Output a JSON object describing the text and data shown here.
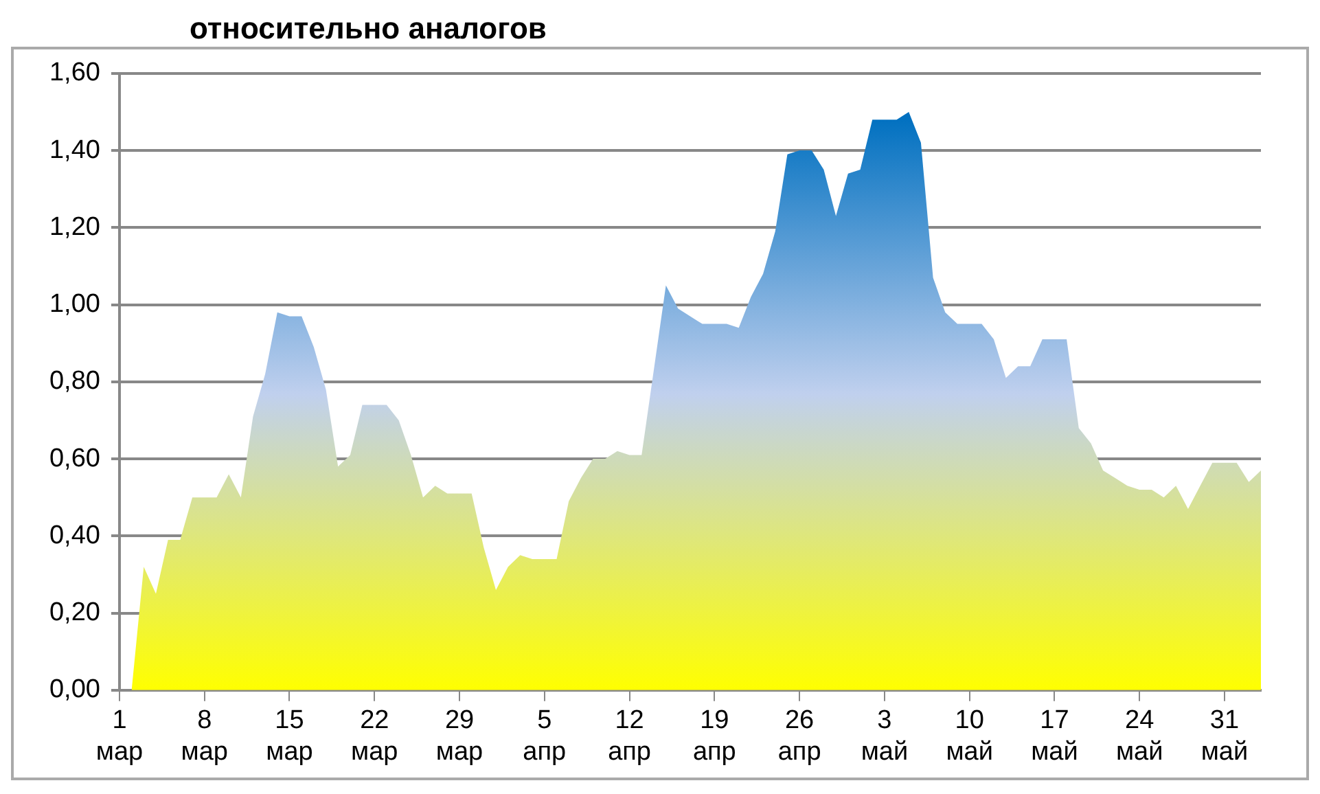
{
  "chart_data": {
    "type": "area",
    "title": "относительно аналогов",
    "categories": [
      "1 мар",
      null,
      null,
      null,
      null,
      null,
      null,
      "8 мар",
      null,
      null,
      null,
      null,
      null,
      null,
      "15 мар",
      null,
      null,
      null,
      null,
      null,
      null,
      "22 мар",
      null,
      null,
      null,
      null,
      null,
      null,
      "29 мар",
      null,
      null,
      null,
      null,
      null,
      null,
      "5 апр",
      null,
      null,
      null,
      null,
      null,
      null,
      "12 апр",
      null,
      null,
      null,
      null,
      null,
      null,
      "19 апр",
      null,
      null,
      null,
      null,
      null,
      null,
      "26 апр",
      null,
      null,
      null,
      null,
      null,
      null,
      "3 май",
      null,
      null,
      null,
      null,
      null,
      null,
      "10 май",
      null,
      null,
      null,
      null,
      null,
      null,
      "17 май",
      null,
      null,
      null,
      null,
      null,
      null,
      "24 май",
      null,
      null,
      null,
      null,
      null,
      null,
      "31 май",
      null,
      null,
      null
    ],
    "series": [
      {
        "color": "#0070c0",
        "values": [
          null,
          0,
          0.32,
          0.25,
          0.39,
          0.39,
          0.5,
          0.5,
          0.5,
          0.56,
          0.5,
          0.71,
          0.82,
          0.98,
          0.97,
          0.97,
          0.89,
          0.78,
          0.58,
          0.61,
          0.74,
          0.74,
          0.74,
          0.7,
          0.61,
          0.5,
          0.53,
          0.51,
          0.51,
          0.51,
          0.37,
          0.26,
          0.32,
          0.35,
          0.34,
          0.34,
          0.34,
          0.49,
          0.55,
          0.6,
          0.6,
          0.62,
          0.61,
          0.61,
          0.83,
          1.05,
          0.99,
          0.97,
          0.95,
          0.95,
          0.95,
          0.94,
          1.02,
          1.08,
          1.19,
          1.39,
          1.4,
          1.4,
          1.35,
          1.23,
          1.34,
          1.35,
          1.48,
          1.48,
          1.48,
          1.5,
          1.42,
          1.07,
          0.98,
          0.95,
          0.95,
          0.95,
          0.91,
          0.81,
          0.84,
          0.84,
          0.91,
          0.91,
          0.91,
          0.68,
          0.64,
          0.57,
          0.55,
          0.53,
          0.52,
          0.52,
          0.5,
          0.53,
          0.47,
          0.53,
          0.59,
          0.59,
          0.59,
          0.54,
          0.57
        ]
      }
    ],
    "ylim": [
      0,
      1.6
    ],
    "yticks": [
      {
        "value": 0,
        "label": "0,00"
      },
      {
        "value": 0.2,
        "label": "0,20"
      },
      {
        "value": 0.4,
        "label": "0,40"
      },
      {
        "value": 0.6,
        "label": "0,60"
      },
      {
        "value": 0.8,
        "label": "0,80"
      },
      {
        "value": 1,
        "label": "1,00"
      },
      {
        "value": 1.2,
        "label": "1,20"
      },
      {
        "value": 1.4,
        "label": "1,40"
      },
      {
        "value": 1.6,
        "label": "1,60"
      }
    ],
    "grid": "y",
    "legend": false
  }
}
